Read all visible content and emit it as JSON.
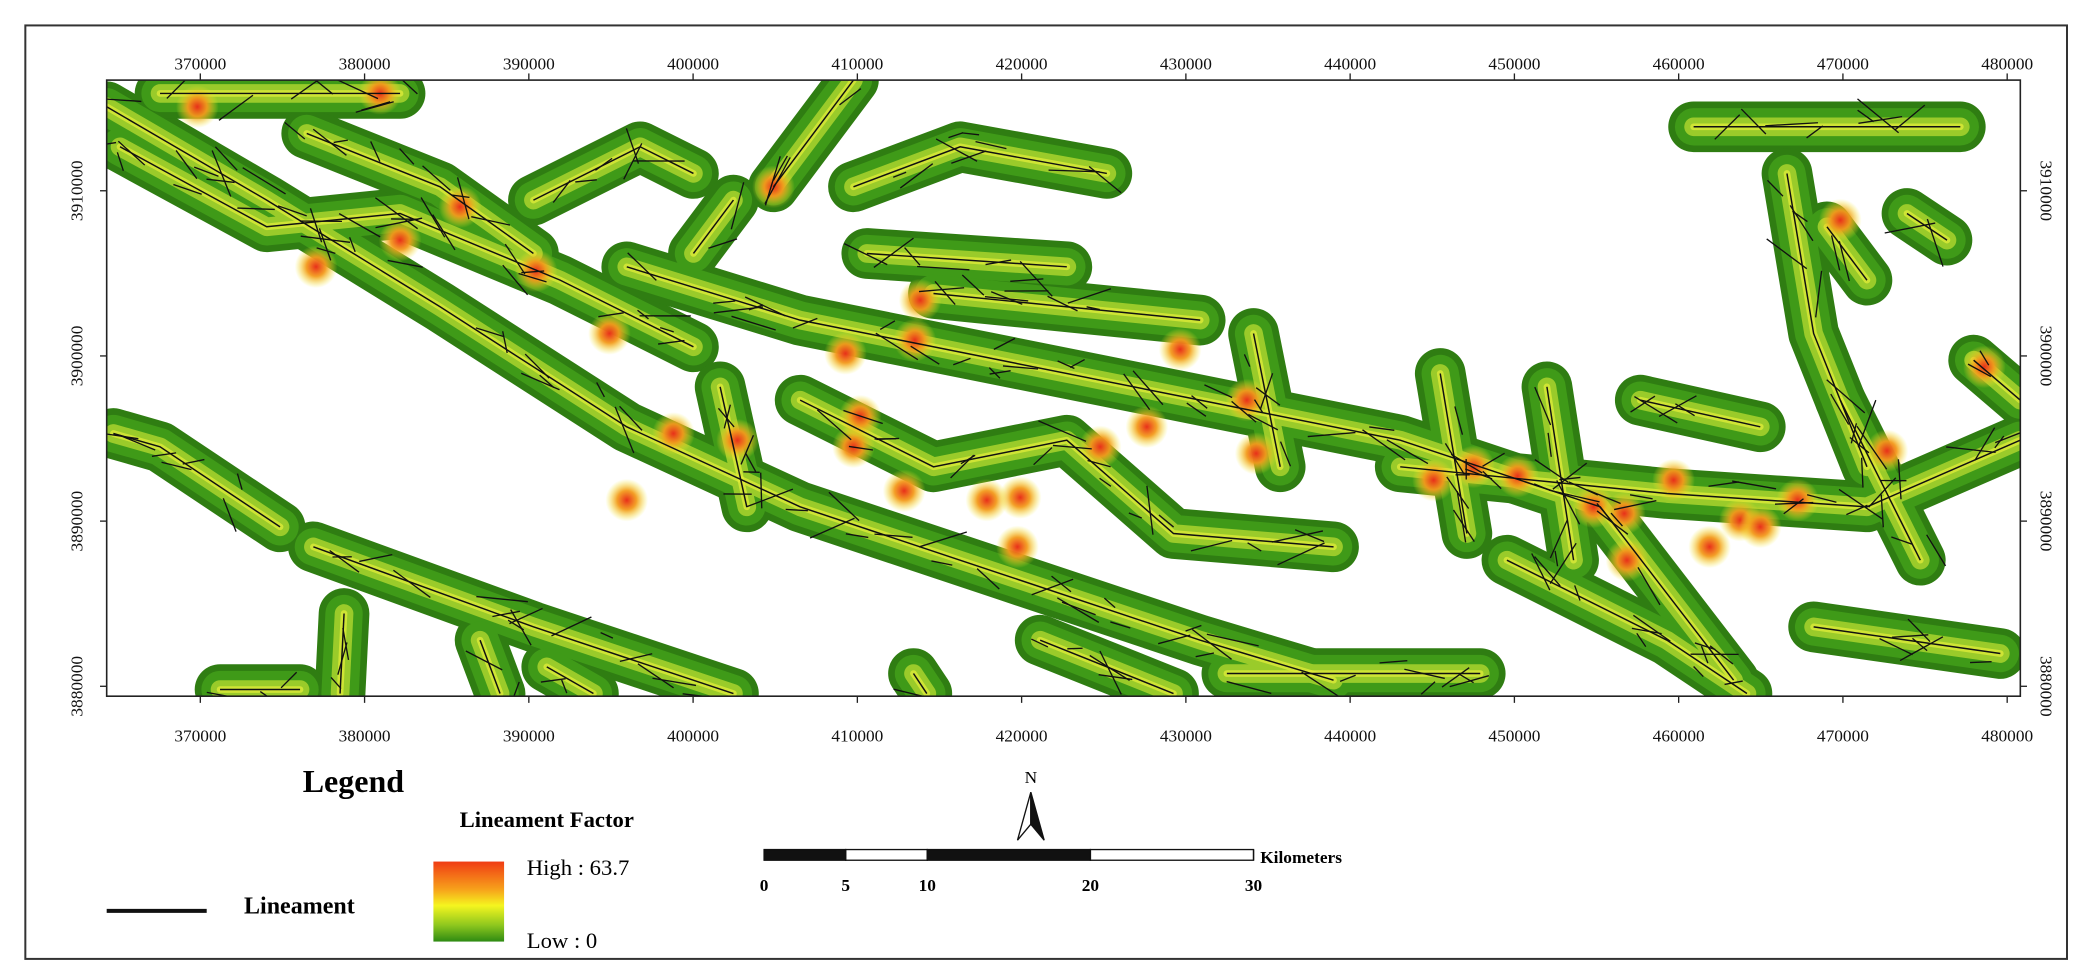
{
  "map": {
    "xlim": [
      364300,
      480800
    ],
    "ylim": [
      3879400,
      3916700
    ],
    "xticks": [
      370000,
      380000,
      390000,
      400000,
      410000,
      420000,
      430000,
      440000,
      450000,
      460000,
      470000,
      480000
    ],
    "yticks": [
      3880000,
      3890000,
      3900000,
      3910000
    ]
  },
  "legend": {
    "title": "Legend",
    "lineament": "Lineament",
    "factor_title": "Lineament Factor",
    "high": "High : 63.7",
    "low": "Low : 0"
  },
  "north": "N",
  "scale_bar": {
    "unit": "Kilometers",
    "ticks": [
      0,
      5,
      10,
      20,
      30
    ]
  }
}
